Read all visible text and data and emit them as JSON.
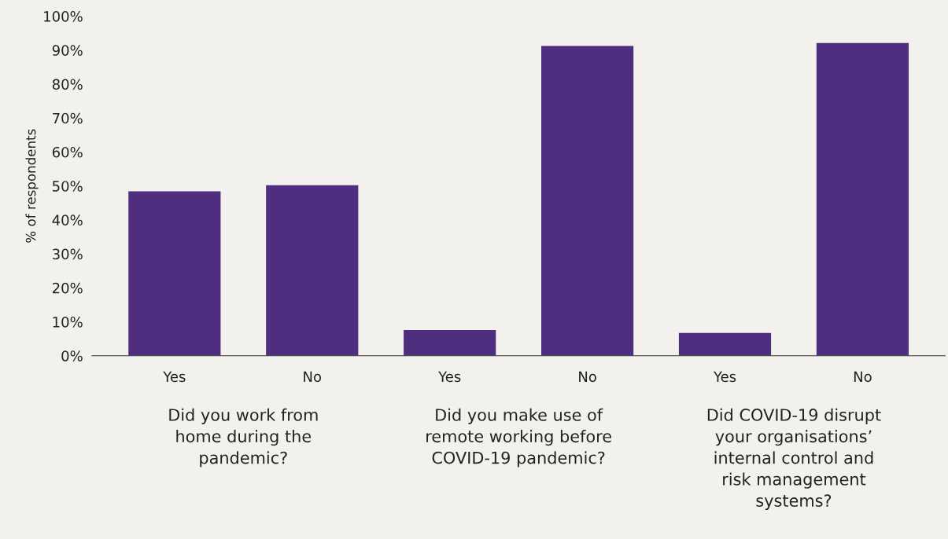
{
  "chart_data": {
    "type": "bar",
    "ylabel": "% of respondents",
    "categories": [
      "Yes",
      "No",
      "Yes",
      "No",
      "Yes",
      "No"
    ],
    "values": [
      48.4,
      50.2,
      7.6,
      91.2,
      6.7,
      92.1
    ],
    "color": "#4f2d7f",
    "ylim": [
      0,
      100
    ],
    "yticks": [
      {
        "value": 0,
        "label": "0%"
      },
      {
        "value": 10,
        "label": "10%"
      },
      {
        "value": 20,
        "label": "20%"
      },
      {
        "value": 30,
        "label": "30%"
      },
      {
        "value": 40,
        "label": "40%"
      },
      {
        "value": 50,
        "label": "50%"
      },
      {
        "value": 60,
        "label": "60%"
      },
      {
        "value": 70,
        "label": "70%"
      },
      {
        "value": 80,
        "label": "80%"
      },
      {
        "value": 90,
        "label": "90%"
      },
      {
        "value": 100,
        "label": "100%"
      }
    ],
    "grid": false,
    "annotations": [
      "Did you work from\nhome during the\npandemic?",
      "Did you make use of\nremote working before\nCOVID-19 pandemic?",
      "Did COVID-19 disrupt\nyour organisations’\ninternal control and\nrisk management\nsystems?"
    ]
  }
}
